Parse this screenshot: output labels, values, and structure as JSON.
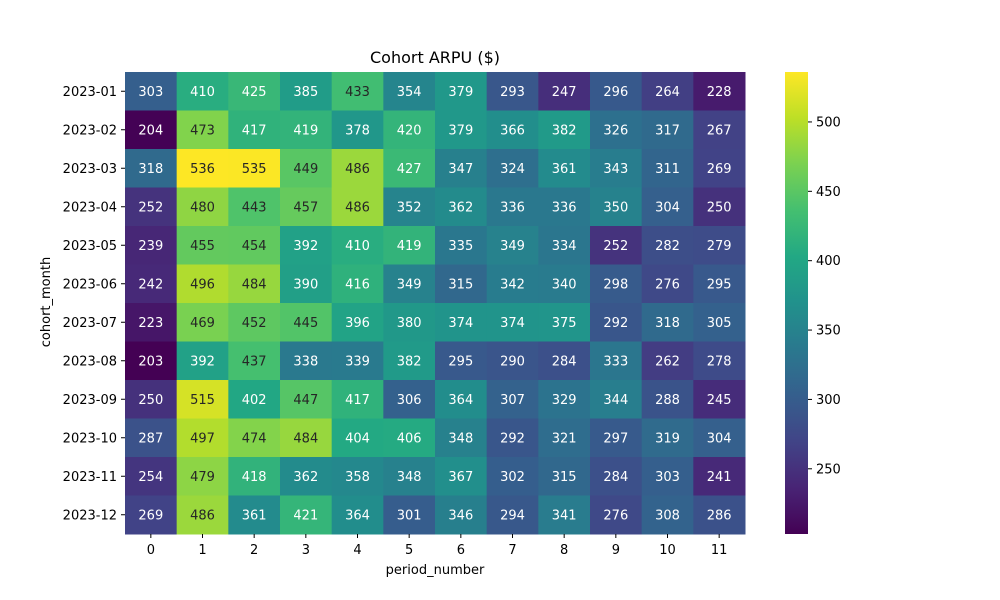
{
  "chart_data": {
    "type": "heatmap",
    "title": "Cohort ARPU ($)",
    "xlabel": "period_number",
    "ylabel": "cohort_month",
    "x_categories": [
      "0",
      "1",
      "2",
      "3",
      "4",
      "5",
      "6",
      "7",
      "8",
      "9",
      "10",
      "11"
    ],
    "y_categories": [
      "2023-01",
      "2023-02",
      "2023-03",
      "2023-04",
      "2023-05",
      "2023-06",
      "2023-07",
      "2023-08",
      "2023-09",
      "2023-10",
      "2023-11",
      "2023-12"
    ],
    "values": [
      [
        303,
        410,
        425,
        385,
        433,
        354,
        379,
        293,
        247,
        296,
        264,
        228
      ],
      [
        204,
        473,
        417,
        419,
        378,
        420,
        379,
        366,
        382,
        326,
        317,
        267
      ],
      [
        318,
        536,
        535,
        449,
        486,
        427,
        347,
        324,
        361,
        343,
        311,
        269
      ],
      [
        252,
        480,
        443,
        457,
        486,
        352,
        362,
        336,
        336,
        350,
        304,
        250
      ],
      [
        239,
        455,
        454,
        392,
        410,
        419,
        335,
        349,
        334,
        252,
        282,
        279
      ],
      [
        242,
        496,
        484,
        390,
        416,
        349,
        315,
        342,
        340,
        298,
        276,
        295
      ],
      [
        223,
        469,
        452,
        445,
        396,
        380,
        374,
        374,
        375,
        292,
        318,
        305
      ],
      [
        203,
        392,
        437,
        338,
        339,
        382,
        295,
        290,
        284,
        333,
        262,
        278
      ],
      [
        250,
        515,
        402,
        447,
        417,
        306,
        364,
        307,
        329,
        344,
        288,
        245
      ],
      [
        287,
        497,
        474,
        484,
        404,
        406,
        348,
        292,
        321,
        297,
        319,
        304
      ],
      [
        254,
        479,
        418,
        362,
        358,
        348,
        367,
        302,
        315,
        284,
        303,
        241
      ],
      [
        269,
        486,
        361,
        421,
        364,
        301,
        346,
        294,
        341,
        276,
        308,
        286
      ]
    ],
    "colormap": "viridis",
    "vmin": 203,
    "vmax": 536,
    "colorbar_ticks": [
      250,
      300,
      350,
      400,
      450,
      500
    ]
  }
}
